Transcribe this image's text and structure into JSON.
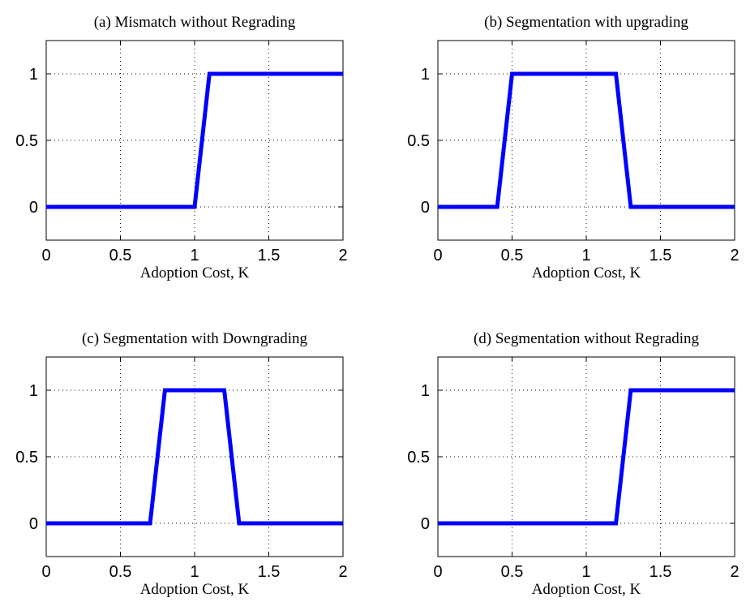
{
  "chart_data": [
    {
      "type": "line",
      "title": "(a) Mismatch without Regrading",
      "xlabel": "Adoption Cost, K",
      "ylabel": "",
      "xlim": [
        0,
        2
      ],
      "ylim": [
        -0.25,
        1.25
      ],
      "xticks": [
        0,
        0.5,
        1,
        1.5,
        2
      ],
      "xtick_labels": [
        "0",
        "0.5",
        "1",
        "1.5",
        "2"
      ],
      "yticks": [
        0,
        0.5,
        1
      ],
      "ytick_labels": [
        "0",
        "0.5",
        "1"
      ],
      "grid": true,
      "color": "#0000ff",
      "x": [
        0,
        1.0,
        1.1,
        2
      ],
      "y": [
        0,
        0,
        1,
        1
      ]
    },
    {
      "type": "line",
      "title": "(b) Segmentation with upgrading",
      "xlabel": "Adoption Cost, K",
      "ylabel": "",
      "xlim": [
        0,
        2
      ],
      "ylim": [
        -0.25,
        1.25
      ],
      "xticks": [
        0,
        0.5,
        1,
        1.5,
        2
      ],
      "xtick_labels": [
        "0",
        "0.5",
        "1",
        "1.5",
        "2"
      ],
      "yticks": [
        0,
        0.5,
        1
      ],
      "ytick_labels": [
        "0",
        "0.5",
        "1"
      ],
      "grid": true,
      "color": "#0000ff",
      "x": [
        0,
        0.4,
        0.5,
        1.2,
        1.3,
        2
      ],
      "y": [
        0,
        0,
        1,
        1,
        0,
        0
      ]
    },
    {
      "type": "line",
      "title": "(c) Segmentation with Downgrading",
      "xlabel": "Adoption Cost, K",
      "ylabel": "",
      "xlim": [
        0,
        2
      ],
      "ylim": [
        -0.25,
        1.25
      ],
      "xticks": [
        0,
        0.5,
        1,
        1.5,
        2
      ],
      "xtick_labels": [
        "0",
        "0.5",
        "1",
        "1.5",
        "2"
      ],
      "yticks": [
        0,
        0.5,
        1
      ],
      "ytick_labels": [
        "0",
        "0.5",
        "1"
      ],
      "grid": true,
      "color": "#0000ff",
      "x": [
        0,
        0.7,
        0.8,
        1.2,
        1.3,
        2
      ],
      "y": [
        0,
        0,
        1,
        1,
        0,
        0
      ]
    },
    {
      "type": "line",
      "title": "(d) Segmentation without Regrading",
      "xlabel": "Adoption Cost, K",
      "ylabel": "",
      "xlim": [
        0,
        2
      ],
      "ylim": [
        -0.25,
        1.25
      ],
      "xticks": [
        0,
        0.5,
        1,
        1.5,
        2
      ],
      "xtick_labels": [
        "0",
        "0.5",
        "1",
        "1.5",
        "2"
      ],
      "yticks": [
        0,
        0.5,
        1
      ],
      "ytick_labels": [
        "0",
        "0.5",
        "1"
      ],
      "grid": true,
      "color": "#0000ff",
      "x": [
        0,
        1.2,
        1.3,
        2
      ],
      "y": [
        0,
        0,
        1,
        1
      ]
    }
  ]
}
